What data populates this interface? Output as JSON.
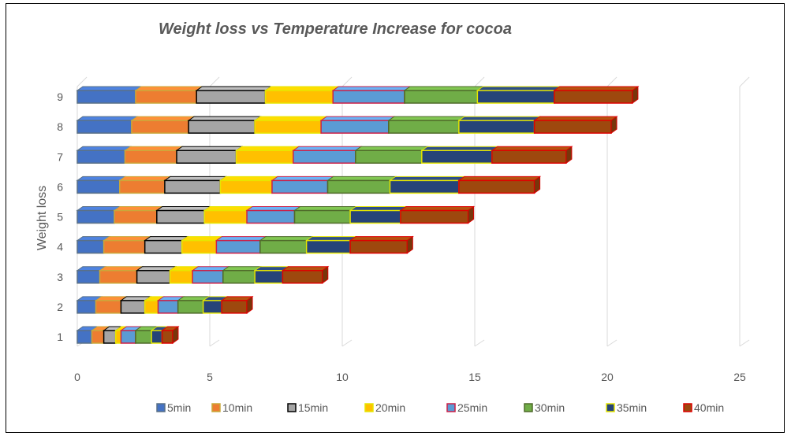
{
  "chart_data": {
    "type": "bar",
    "orientation": "horizontal",
    "stacked": true,
    "style": "3d",
    "title": "Weight loss vs Temperature Increase for cocoa",
    "xlabel": "",
    "ylabel": "Weight loss",
    "xlim": [
      0,
      25
    ],
    "xticks": [
      "0",
      "5",
      "10",
      "15",
      "20",
      "25"
    ],
    "categories": [
      "1",
      "2",
      "3",
      "4",
      "5",
      "6",
      "7",
      "8",
      "9"
    ],
    "grid": true,
    "legend_position": "bottom",
    "series": [
      {
        "name": "5min",
        "fill": "#4472C4",
        "stroke": "#5a7086",
        "values": [
          0.55,
          0.7,
          0.85,
          1.0,
          1.4,
          1.6,
          1.8,
          2.05,
          2.2
        ]
      },
      {
        "name": "10min",
        "fill": "#ED7D31",
        "stroke": "#c9a83a",
        "values": [
          0.45,
          0.95,
          1.4,
          1.55,
          1.6,
          1.7,
          1.95,
          2.15,
          2.3
        ]
      },
      {
        "name": "15min",
        "fill": "#A5A5A5",
        "stroke": "#000000",
        "values": [
          0.45,
          0.9,
          1.25,
          1.4,
          1.8,
          2.1,
          2.25,
          2.5,
          2.6
        ]
      },
      {
        "name": "20min",
        "fill": "#FFC000",
        "stroke": "#e6e600",
        "values": [
          0.2,
          0.5,
          0.85,
          1.3,
          1.6,
          1.95,
          2.15,
          2.5,
          2.55
        ]
      },
      {
        "name": "25min",
        "fill": "#5B9BD5",
        "stroke": "#cc1f47",
        "values": [
          0.55,
          0.75,
          1.15,
          1.65,
          1.8,
          2.1,
          2.35,
          2.55,
          2.7
        ]
      },
      {
        "name": "30min",
        "fill": "#70AD47",
        "stroke": "#4f6a2a",
        "values": [
          0.6,
          0.95,
          1.2,
          1.75,
          2.1,
          2.35,
          2.5,
          2.65,
          2.75
        ]
      },
      {
        "name": "35min",
        "fill": "#264478",
        "stroke": "#e6e600",
        "values": [
          0.4,
          0.7,
          1.05,
          1.65,
          1.9,
          2.6,
          2.65,
          2.85,
          2.9
        ]
      },
      {
        "name": "40min",
        "fill": "#9E480E",
        "stroke": "#dd0000",
        "values": [
          0.4,
          0.95,
          1.5,
          2.15,
          2.55,
          2.85,
          2.8,
          2.9,
          2.95
        ]
      }
    ]
  }
}
